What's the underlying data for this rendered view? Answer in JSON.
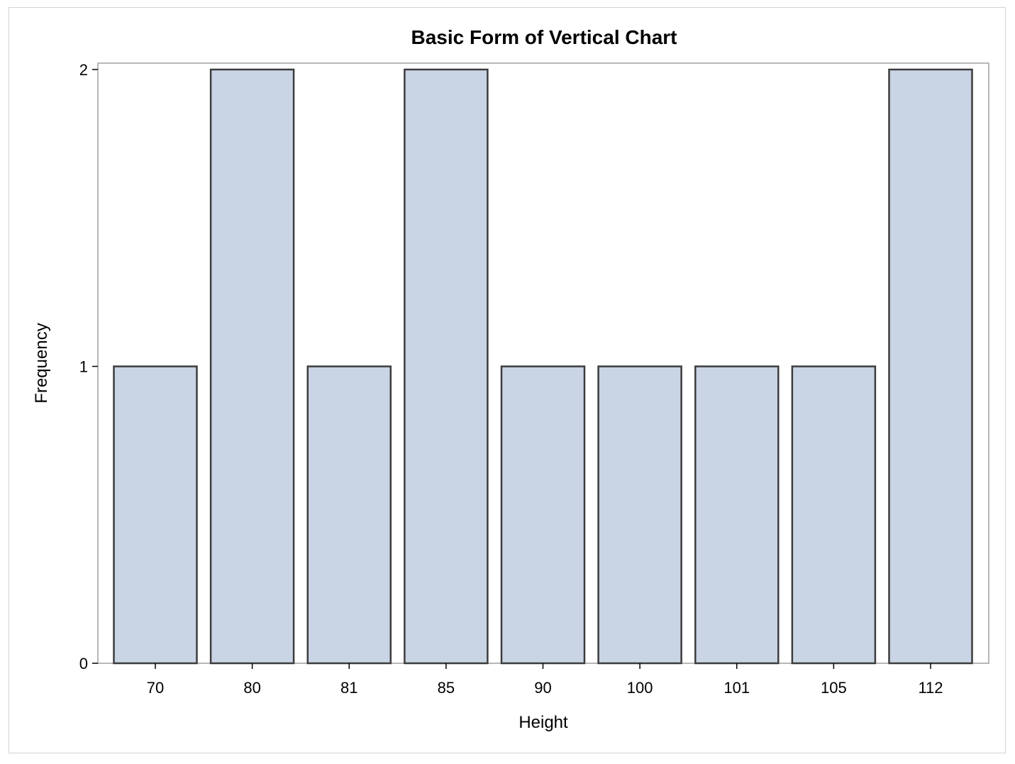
{
  "chart_data": {
    "type": "bar",
    "title": "Basic Form of Vertical Chart",
    "xlabel": "Height",
    "ylabel": "Frequency",
    "categories": [
      "70",
      "80",
      "81",
      "85",
      "90",
      "100",
      "101",
      "105",
      "112"
    ],
    "values": [
      1,
      2,
      1,
      2,
      1,
      1,
      1,
      1,
      2
    ],
    "ylim": [
      0,
      2
    ],
    "yticks": [
      "0",
      "1",
      "2"
    ],
    "grid": false,
    "legend": "none",
    "colors": {
      "bar_fill": "#c9d4e5",
      "bar_outline": "#3c3c3c",
      "axis": "#a0a0a0",
      "frame": "#d3d3d3"
    }
  }
}
